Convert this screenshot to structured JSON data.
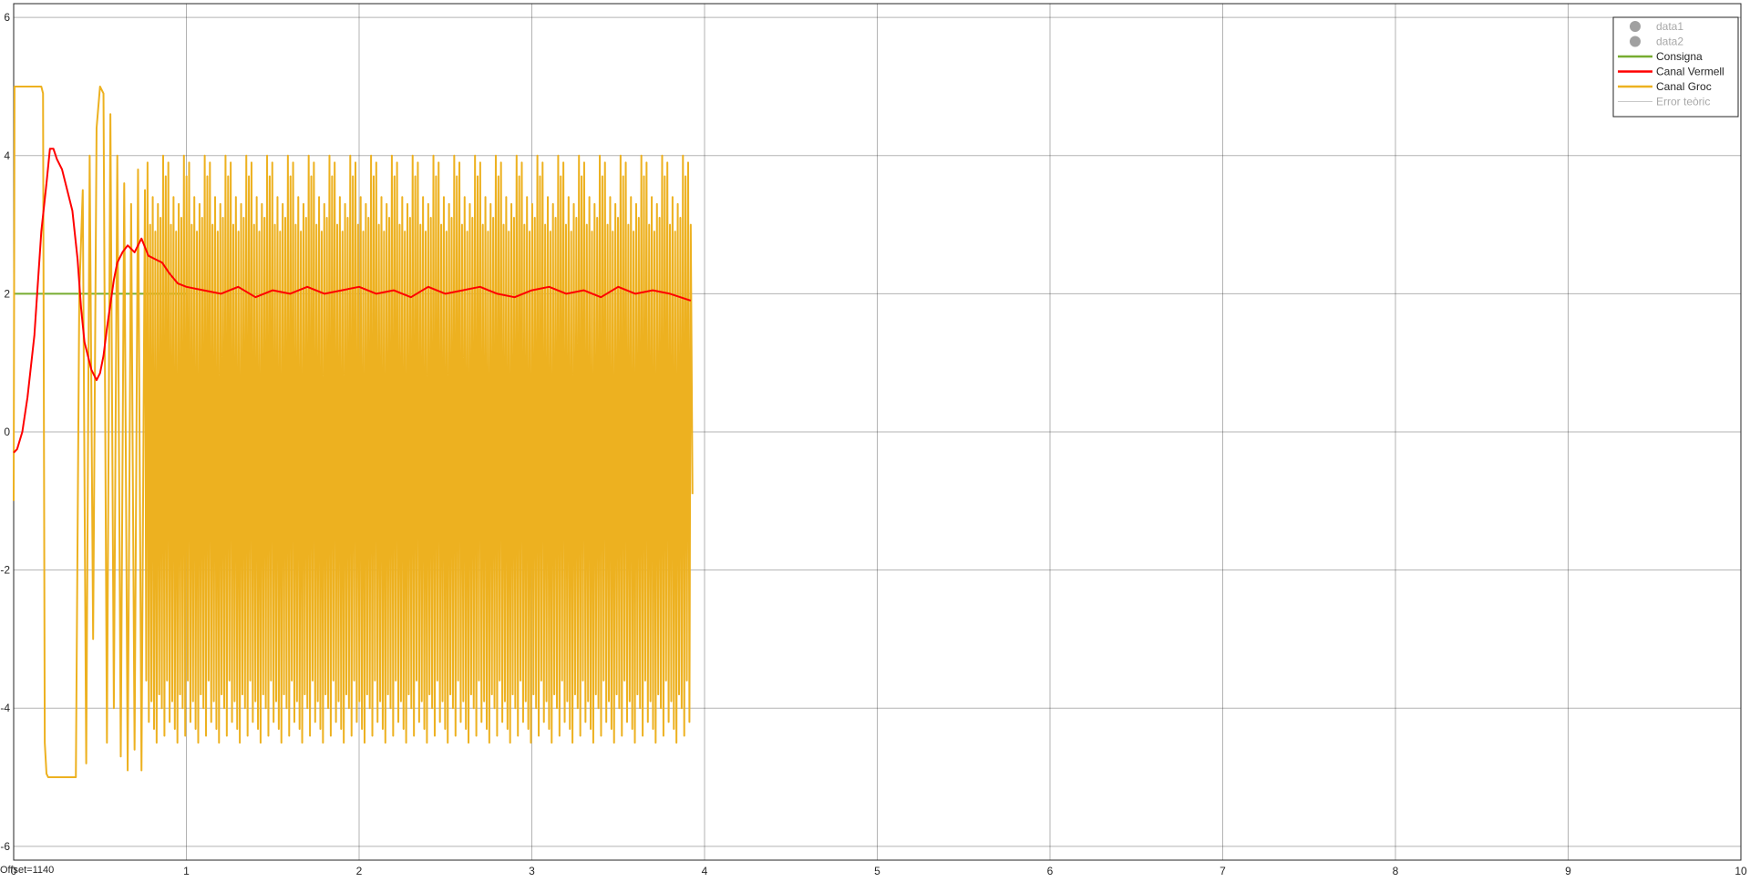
{
  "chart_data": {
    "type": "line",
    "title": "",
    "xlabel": "",
    "ylabel": "",
    "xlim": [
      0,
      10
    ],
    "ylim": [
      -6.2,
      6.2
    ],
    "grid": true,
    "legend_placement": "top-right",
    "offset_label": "Offset=1140",
    "xticks": [
      {
        "value": 0,
        "label": "0"
      },
      {
        "value": 1,
        "label": "1"
      },
      {
        "value": 2,
        "label": "2"
      },
      {
        "value": 3,
        "label": "3"
      },
      {
        "value": 4,
        "label": "4"
      },
      {
        "value": 5,
        "label": "5"
      },
      {
        "value": 6,
        "label": "6"
      },
      {
        "value": 7,
        "label": "7"
      },
      {
        "value": 8,
        "label": "8"
      },
      {
        "value": 9,
        "label": "9"
      },
      {
        "value": 10,
        "label": "10"
      }
    ],
    "yticks": [
      {
        "value": -6,
        "label": "-6"
      },
      {
        "value": -4,
        "label": "-4"
      },
      {
        "value": -2,
        "label": "-2"
      },
      {
        "value": 0,
        "label": "0"
      },
      {
        "value": 2,
        "label": "2"
      },
      {
        "value": 4,
        "label": "4"
      },
      {
        "value": 6,
        "label": "6"
      }
    ],
    "legend": [
      {
        "label": "data1",
        "color": "#a0a0a0",
        "marker": "circle",
        "muted": true
      },
      {
        "label": "data2",
        "color": "#a0a0a0",
        "marker": "circle",
        "muted": true
      },
      {
        "label": "Consigna",
        "color": "#77ac30",
        "marker": "line",
        "muted": false
      },
      {
        "label": "Canal Vermell",
        "color": "#ff0000",
        "marker": "line",
        "muted": false
      },
      {
        "label": "Canal Groc",
        "color": "#edb120",
        "marker": "line",
        "muted": false
      },
      {
        "label": "Error teòric",
        "color": "#c8c8c8",
        "marker": "line",
        "muted": true
      }
    ],
    "series": [
      {
        "name": "Consigna",
        "color": "#77ac30",
        "x": [
          0,
          1.0
        ],
        "y": [
          2,
          2
        ]
      },
      {
        "name": "Canal Vermell",
        "color": "#ff0000",
        "x": [
          0,
          0.02,
          0.05,
          0.08,
          0.12,
          0.16,
          0.19,
          0.21,
          0.23,
          0.25,
          0.28,
          0.31,
          0.34,
          0.37,
          0.39,
          0.41,
          0.43,
          0.45,
          0.48,
          0.5,
          0.52,
          0.54,
          0.56,
          0.58,
          0.6,
          0.63,
          0.66,
          0.7,
          0.74,
          0.78,
          0.82,
          0.86,
          0.9,
          0.95,
          1.0,
          1.1,
          1.2,
          1.3,
          1.4,
          1.5,
          1.6,
          1.7,
          1.8,
          1.9,
          2.0,
          2.1,
          2.2,
          2.3,
          2.4,
          2.5,
          2.6,
          2.7,
          2.8,
          2.9,
          3.0,
          3.1,
          3.2,
          3.3,
          3.4,
          3.5,
          3.6,
          3.7,
          3.8,
          3.92
        ],
        "y": [
          -0.3,
          -0.25,
          0.0,
          0.5,
          1.4,
          2.9,
          3.6,
          4.1,
          4.1,
          3.95,
          3.8,
          3.5,
          3.2,
          2.5,
          1.8,
          1.3,
          1.1,
          0.9,
          0.75,
          0.85,
          1.1,
          1.5,
          1.85,
          2.2,
          2.45,
          2.6,
          2.7,
          2.6,
          2.8,
          2.55,
          2.5,
          2.45,
          2.3,
          2.15,
          2.1,
          2.05,
          2.0,
          2.1,
          1.95,
          2.05,
          2.0,
          2.1,
          2.0,
          2.05,
          2.1,
          2.0,
          2.05,
          1.95,
          2.1,
          2.0,
          2.05,
          2.1,
          2.0,
          1.95,
          2.05,
          2.1,
          2.0,
          2.05,
          1.95,
          2.1,
          2.0,
          2.05,
          2.0,
          1.9
        ]
      },
      {
        "name": "Canal Groc",
        "color": "#edb120",
        "x": [
          0,
          0.005,
          0.16,
          0.17,
          0.18,
          0.19,
          0.2,
          0.25,
          0.3,
          0.36,
          0.38,
          0.4,
          0.42,
          0.44,
          0.46,
          0.48,
          0.5,
          0.52,
          0.54,
          0.56,
          0.58,
          0.6,
          0.62,
          0.64,
          0.66,
          0.68,
          0.7,
          0.72,
          0.74,
          0.76
        ],
        "y": [
          -1.0,
          5.0,
          5.0,
          4.9,
          -4.5,
          -4.95,
          -5.0,
          -5.0,
          -5.0,
          -5.0,
          2.0,
          3.5,
          -4.8,
          4.0,
          -3.0,
          4.4,
          5.0,
          4.9,
          -4.5,
          4.6,
          -4.0,
          4.0,
          -4.7,
          3.6,
          -4.9,
          3.3,
          -4.6,
          3.8,
          -4.9,
          3.5
        ],
        "oscillation": {
          "x_start": 0.76,
          "x_end": 3.92,
          "high_values": [
            3.7,
            3.2,
            3.9,
            3.5,
            3.0,
            3.8,
            3.4,
            3.6,
            2.9,
            3.75,
            3.3,
            3.85,
            3.1,
            3.6,
            4.0,
            3.4
          ],
          "low_values": [
            -4.9,
            -4.3,
            -5.0,
            -3.9,
            -4.6,
            -4.2,
            -5.0,
            -3.6,
            -4.8,
            -4.4,
            -5.0,
            -4.0,
            -4.7,
            -3.8,
            -4.95,
            -4.5
          ]
        },
        "x_end": 3.93,
        "y_end": -0.9
      }
    ]
  }
}
